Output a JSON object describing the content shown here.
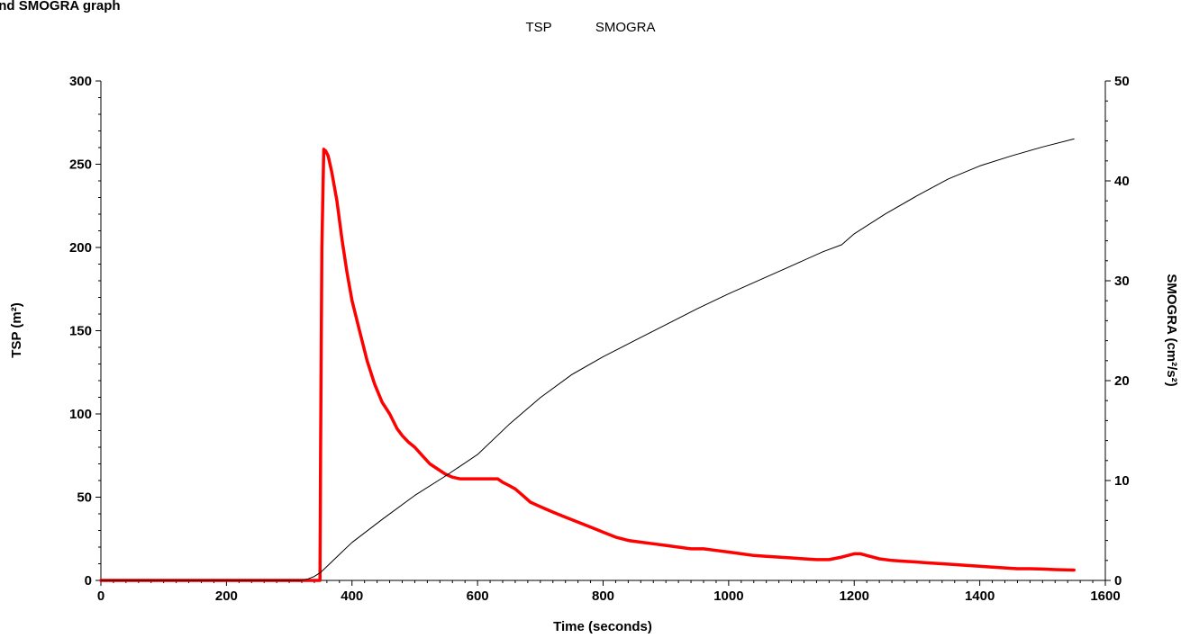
{
  "page": {
    "title": "P and SMOGRA graph"
  },
  "chart_data": {
    "type": "line",
    "title": "P and SMOGRA graph",
    "xlabel": "Time (seconds)",
    "ylabel_left": "TSP (m²)",
    "ylabel_right": "SMOGRA (cm²/s²)",
    "xlim": [
      0,
      1600
    ],
    "ylim_left": [
      0,
      300
    ],
    "ylim_right": [
      0,
      50
    ],
    "x_ticks": [
      0,
      200,
      400,
      600,
      800,
      1000,
      1200,
      1400,
      1600
    ],
    "y_left_ticks": [
      0,
      50,
      100,
      150,
      200,
      250,
      300
    ],
    "y_right_ticks": [
      0,
      10,
      20,
      30,
      40,
      50
    ],
    "grid": false,
    "legend": [
      "TSP",
      "SMOGRA"
    ],
    "legend_position": "top-center",
    "series": [
      {
        "name": "TSP",
        "axis": "left",
        "color": "#ff0000",
        "x": [
          0,
          320,
          349,
          350,
          352,
          355,
          358,
          362,
          368,
          376,
          384,
          392,
          400,
          412,
          424,
          436,
          448,
          460,
          472,
          480,
          490,
          500,
          512,
          524,
          536,
          548,
          560,
          572,
          584,
          596,
          608,
          620,
          632,
          640,
          650,
          660,
          672,
          684,
          696,
          708,
          720,
          740,
          760,
          780,
          800,
          820,
          840,
          860,
          880,
          900,
          920,
          940,
          960,
          980,
          1000,
          1020,
          1040,
          1060,
          1080,
          1100,
          1120,
          1140,
          1160,
          1180,
          1200,
          1210,
          1220,
          1240,
          1260,
          1280,
          1300,
          1320,
          1340,
          1360,
          1380,
          1400,
          1420,
          1440,
          1460,
          1480,
          1500,
          1520,
          1550
        ],
        "values": [
          0,
          0,
          0,
          80,
          200,
          259,
          258,
          255,
          245,
          228,
          205,
          185,
          168,
          150,
          132,
          118,
          107,
          100,
          91,
          87,
          83,
          80,
          75,
          70,
          67,
          64,
          62,
          61,
          61,
          61,
          61,
          61,
          61,
          59,
          57,
          55,
          51,
          47,
          45,
          43,
          41,
          38,
          35,
          32,
          29,
          26,
          24,
          23,
          22,
          21,
          20,
          19,
          19,
          18,
          17,
          16,
          15,
          14.5,
          14,
          13.5,
          13,
          12.5,
          12.5,
          14,
          16,
          16,
          15,
          13,
          12,
          11.5,
          11,
          10.5,
          10,
          9.5,
          9,
          8.5,
          8,
          7.5,
          7,
          7,
          6.8,
          6.5,
          6.2
        ]
      },
      {
        "name": "SMOGRA",
        "axis": "right",
        "color": "#000000",
        "x": [
          0,
          320,
          330,
          340,
          350,
          360,
          380,
          400,
          450,
          500,
          550,
          600,
          650,
          700,
          750,
          800,
          850,
          900,
          950,
          1000,
          1050,
          1100,
          1150,
          1180,
          1200,
          1250,
          1300,
          1350,
          1400,
          1450,
          1500,
          1550
        ],
        "values": [
          0,
          0,
          0.15,
          0.4,
          0.8,
          1.4,
          2.6,
          3.8,
          6.2,
          8.5,
          10.5,
          12.6,
          15.6,
          18.3,
          20.6,
          22.4,
          24.0,
          25.6,
          27.2,
          28.7,
          30.1,
          31.5,
          32.9,
          33.6,
          34.7,
          36.7,
          38.5,
          40.2,
          41.5,
          42.5,
          43.4,
          44.2
        ]
      }
    ]
  }
}
